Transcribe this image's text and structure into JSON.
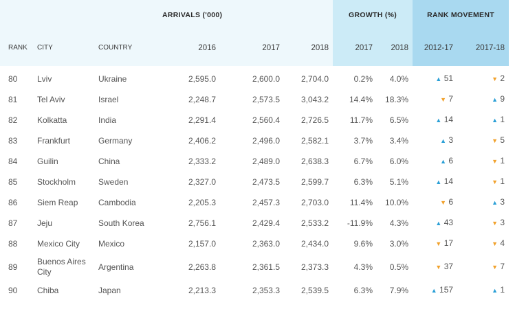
{
  "header": {
    "arrivals_label": "ARRIVALS ('000)",
    "growth_label": "GROWTH (%)",
    "rank_movement_label": "RANK MOVEMENT",
    "columns": {
      "rank": "RANK",
      "city": "CITY",
      "country": "COUNTRY",
      "y2016": "2016",
      "y2017": "2017",
      "y2018": "2018",
      "g2017": "2017",
      "g2018": "2018",
      "m1217": "2012-17",
      "m1718": "2017-18"
    }
  },
  "colors": {
    "up_arrow": "#2a9fd6",
    "down_arrow": "#f1a12b",
    "header_bg": "#eef8fc",
    "growth_bg": "#ccebf7",
    "rank_bg": "#a9d9f0"
  },
  "rows": [
    {
      "rank": "80",
      "city": "Lviv",
      "country": "Ukraine",
      "a2016": "2,595.0",
      "a2017": "2,600.0",
      "a2018": "2,704.0",
      "g2017": "0.2%",
      "g2018": "4.0%",
      "m1217_dir": "up",
      "m1217_arrow": "▲",
      "m1217": "51",
      "m1718_dir": "down",
      "m1718_arrow": "▼",
      "m1718": "2"
    },
    {
      "rank": "81",
      "city": "Tel Aviv",
      "country": "Israel",
      "a2016": "2,248.7",
      "a2017": "2,573.5",
      "a2018": "3,043.2",
      "g2017": "14.4%",
      "g2018": "18.3%",
      "m1217_dir": "down",
      "m1217_arrow": "▼",
      "m1217": "7",
      "m1718_dir": "up",
      "m1718_arrow": "▲",
      "m1718": "9"
    },
    {
      "rank": "82",
      "city": "Kolkatta",
      "country": "India",
      "a2016": "2,291.4",
      "a2017": "2,560.4",
      "a2018": "2,726.5",
      "g2017": "11.7%",
      "g2018": "6.5%",
      "m1217_dir": "up",
      "m1217_arrow": "▲",
      "m1217": "14",
      "m1718_dir": "up",
      "m1718_arrow": "▲",
      "m1718": "1"
    },
    {
      "rank": "83",
      "city": "Frankfurt",
      "country": "Germany",
      "a2016": "2,406.2",
      "a2017": "2,496.0",
      "a2018": "2,582.1",
      "g2017": "3.7%",
      "g2018": "3.4%",
      "m1217_dir": "up",
      "m1217_arrow": "▲",
      "m1217": "3",
      "m1718_dir": "down",
      "m1718_arrow": "▼",
      "m1718": "5"
    },
    {
      "rank": "84",
      "city": "Guilin",
      "country": "China",
      "a2016": "2,333.2",
      "a2017": "2,489.0",
      "a2018": "2,638.3",
      "g2017": "6.7%",
      "g2018": "6.0%",
      "m1217_dir": "up",
      "m1217_arrow": "▲",
      "m1217": "6",
      "m1718_dir": "down",
      "m1718_arrow": "▼",
      "m1718": "1"
    },
    {
      "rank": "85",
      "city": "Stockholm",
      "country": "Sweden",
      "a2016": "2,327.0",
      "a2017": "2,473.5",
      "a2018": "2,599.7",
      "g2017": "6.3%",
      "g2018": "5.1%",
      "m1217_dir": "up",
      "m1217_arrow": "▲",
      "m1217": "14",
      "m1718_dir": "down",
      "m1718_arrow": "▼",
      "m1718": "1"
    },
    {
      "rank": "86",
      "city": "Siem Reap",
      "country": "Cambodia",
      "a2016": "2,205.3",
      "a2017": "2,457.3",
      "a2018": "2,703.0",
      "g2017": "11.4%",
      "g2018": "10.0%",
      "m1217_dir": "down",
      "m1217_arrow": "▼",
      "m1217": "6",
      "m1718_dir": "up",
      "m1718_arrow": "▲",
      "m1718": "3"
    },
    {
      "rank": "87",
      "city": "Jeju",
      "country": "South Korea",
      "a2016": "2,756.1",
      "a2017": "2,429.4",
      "a2018": "2,533.2",
      "g2017": "-11.9%",
      "g2018": "4.3%",
      "m1217_dir": "up",
      "m1217_arrow": "▲",
      "m1217": "43",
      "m1718_dir": "down",
      "m1718_arrow": "▼",
      "m1718": "3"
    },
    {
      "rank": "88",
      "city": "Mexico City",
      "country": "Mexico",
      "a2016": "2,157.0",
      "a2017": "2,363.0",
      "a2018": "2,434.0",
      "g2017": "9.6%",
      "g2018": "3.0%",
      "m1217_dir": "down",
      "m1217_arrow": "▼",
      "m1217": "17",
      "m1718_dir": "down",
      "m1718_arrow": "▼",
      "m1718": "4"
    },
    {
      "rank": "89",
      "city": "Buenos Aires City",
      "country": "Argentina",
      "a2016": "2,263.8",
      "a2017": "2,361.5",
      "a2018": "2,373.3",
      "g2017": "4.3%",
      "g2018": "0.5%",
      "m1217_dir": "down",
      "m1217_arrow": "▼",
      "m1217": "37",
      "m1718_dir": "down",
      "m1718_arrow": "▼",
      "m1718": "7"
    },
    {
      "rank": "90",
      "city": "Chiba",
      "country": "Japan",
      "a2016": "2,213.3",
      "a2017": "2,353.3",
      "a2018": "2,539.5",
      "g2017": "6.3%",
      "g2018": "7.9%",
      "m1217_dir": "up",
      "m1217_arrow": "▲",
      "m1217": "157",
      "m1718_dir": "up",
      "m1718_arrow": "▲",
      "m1718": "1"
    }
  ]
}
